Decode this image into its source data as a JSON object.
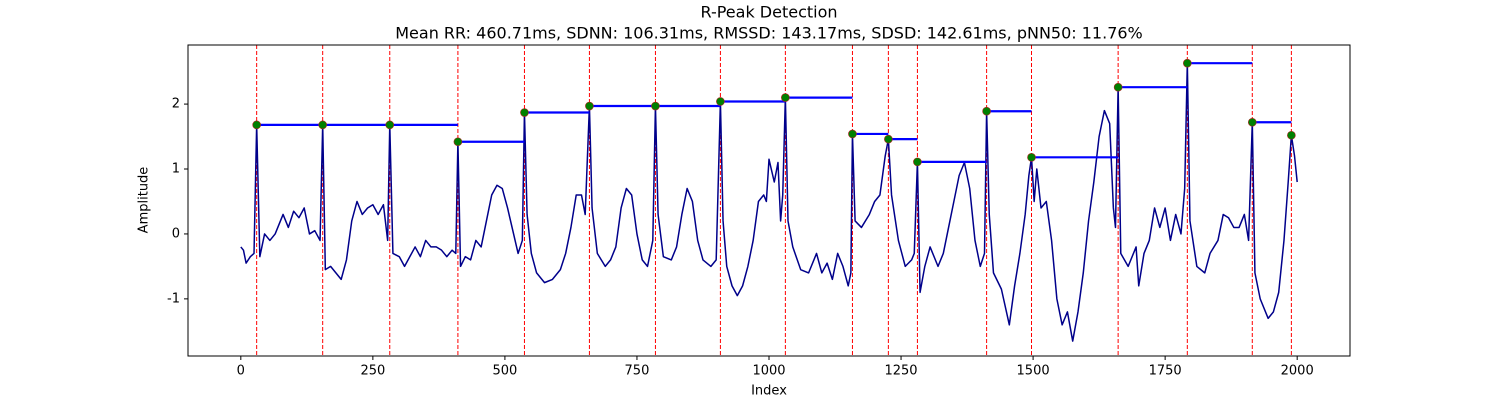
{
  "chart_data": {
    "type": "line",
    "title": "R-Peak Detection",
    "subtitle": "Mean RR: 460.71ms, SDNN: 106.31ms, RMSSD: 143.17ms, SDSD: 142.61ms, pNN50: 11.76%",
    "x_label": "Index",
    "y_label": "Amplitude",
    "xlim": [
      -100,
      2100
    ],
    "ylim": [
      -1.88,
      2.91
    ],
    "xticks": [
      0,
      250,
      500,
      750,
      1000,
      1250,
      1500,
      1750,
      2000
    ],
    "yticks": [
      -1,
      0,
      1,
      2
    ],
    "signal": {
      "color": "#00008b",
      "x": [
        0,
        5,
        10,
        18,
        25,
        30,
        36,
        45,
        55,
        65,
        80,
        90,
        100,
        110,
        120,
        130,
        140,
        150,
        155,
        160,
        170,
        180,
        190,
        200,
        210,
        220,
        230,
        240,
        250,
        260,
        270,
        278,
        282,
        288,
        300,
        310,
        320,
        330,
        340,
        350,
        360,
        370,
        380,
        390,
        400,
        407,
        411,
        416,
        425,
        435,
        445,
        455,
        465,
        475,
        485,
        495,
        505,
        515,
        525,
        533,
        537,
        542,
        550,
        560,
        575,
        590,
        605,
        615,
        625,
        635,
        645,
        652,
        660,
        665,
        675,
        690,
        700,
        710,
        720,
        730,
        740,
        750,
        760,
        770,
        780,
        785,
        790,
        800,
        815,
        825,
        835,
        845,
        855,
        865,
        875,
        890,
        900,
        908,
        913,
        920,
        930,
        940,
        950,
        960,
        970,
        980,
        990,
        995,
        1000,
        1010,
        1017,
        1022,
        1026,
        1031,
        1036,
        1045,
        1060,
        1075,
        1090,
        1100,
        1110,
        1120,
        1130,
        1140,
        1150,
        1155,
        1158,
        1163,
        1175,
        1190,
        1200,
        1210,
        1220,
        1226,
        1232,
        1245,
        1258,
        1270,
        1275,
        1281,
        1286,
        1295,
        1305,
        1320,
        1330,
        1340,
        1350,
        1360,
        1370,
        1380,
        1390,
        1400,
        1408,
        1412,
        1417,
        1425,
        1440,
        1455,
        1465,
        1475,
        1485,
        1492,
        1497,
        1502,
        1507,
        1515,
        1525,
        1535,
        1545,
        1555,
        1565,
        1575,
        1585,
        1595,
        1605,
        1615,
        1625,
        1635,
        1645,
        1652,
        1656,
        1661,
        1666,
        1680,
        1695,
        1700,
        1710,
        1720,
        1730,
        1740,
        1750,
        1760,
        1770,
        1780,
        1787,
        1792,
        1797,
        1810,
        1825,
        1835,
        1850,
        1860,
        1870,
        1880,
        1890,
        1900,
        1908,
        1915,
        1920,
        1930,
        1945,
        1955,
        1965,
        1975,
        1983,
        1989,
        1995,
        2000
      ],
      "values": [
        -0.2,
        -0.25,
        -0.45,
        -0.35,
        -0.3,
        1.68,
        -0.35,
        0.0,
        -0.1,
        0.0,
        0.3,
        0.1,
        0.35,
        0.25,
        0.4,
        0.0,
        0.05,
        -0.1,
        1.68,
        -0.55,
        -0.5,
        -0.6,
        -0.7,
        -0.4,
        0.2,
        0.5,
        0.3,
        0.4,
        0.45,
        0.3,
        0.45,
        -0.1,
        1.68,
        -0.3,
        -0.35,
        -0.5,
        -0.35,
        -0.2,
        -0.35,
        -0.1,
        -0.2,
        -0.2,
        -0.25,
        -0.35,
        -0.25,
        -0.3,
        1.42,
        -0.5,
        -0.35,
        -0.4,
        -0.1,
        -0.2,
        0.2,
        0.6,
        0.75,
        0.7,
        0.4,
        0.05,
        -0.3,
        -0.1,
        1.87,
        0.3,
        -0.3,
        -0.6,
        -0.75,
        -0.7,
        -0.55,
        -0.3,
        0.1,
        0.6,
        0.6,
        0.3,
        1.97,
        0.4,
        -0.3,
        -0.5,
        -0.4,
        -0.2,
        0.4,
        0.7,
        0.6,
        0.0,
        -0.4,
        -0.5,
        -0.1,
        1.97,
        0.3,
        -0.35,
        -0.4,
        -0.2,
        0.3,
        0.7,
        0.5,
        -0.1,
        -0.4,
        -0.5,
        -0.4,
        2.04,
        0.2,
        -0.5,
        -0.8,
        -0.95,
        -0.8,
        -0.5,
        -0.1,
        0.5,
        0.6,
        0.5,
        1.15,
        0.8,
        1.1,
        0.2,
        0.6,
        2.1,
        0.2,
        -0.2,
        -0.55,
        -0.6,
        -0.3,
        -0.6,
        -0.45,
        -0.7,
        -0.3,
        -0.5,
        -0.8,
        -0.6,
        1.54,
        0.2,
        0.1,
        0.3,
        0.5,
        0.6,
        1.2,
        1.46,
        0.6,
        -0.1,
        -0.5,
        -0.4,
        -0.3,
        1.11,
        -0.9,
        -0.5,
        -0.2,
        -0.5,
        -0.3,
        0.1,
        0.5,
        0.9,
        1.1,
        0.7,
        -0.1,
        -0.5,
        -0.3,
        1.89,
        0.3,
        -0.6,
        -0.85,
        -1.4,
        -0.8,
        -0.3,
        0.3,
        0.9,
        1.18,
        0.5,
        1.0,
        0.4,
        0.5,
        -0.1,
        -1.0,
        -1.4,
        -1.2,
        -1.65,
        -1.2,
        -0.6,
        0.2,
        0.8,
        1.5,
        1.9,
        1.7,
        0.4,
        0.1,
        2.26,
        -0.3,
        -0.5,
        -0.2,
        -0.8,
        -0.3,
        -0.1,
        0.4,
        0.1,
        0.4,
        -0.1,
        0.3,
        0.0,
        0.7,
        2.63,
        0.2,
        -0.5,
        -0.6,
        -0.3,
        -0.1,
        0.3,
        0.25,
        0.1,
        0.1,
        0.3,
        -0.1,
        1.72,
        -0.6,
        -1.0,
        -1.3,
        -1.2,
        -0.9,
        -0.1,
        0.8,
        1.52,
        1.2,
        0.8
      ]
    },
    "peaks": {
      "color": "#008000",
      "edge_color": "#b22222",
      "vline_color": "#ff0000",
      "interval_color": "#0000ff",
      "x": [
        30,
        155,
        282,
        411,
        537,
        660,
        785,
        908,
        1031,
        1158,
        1226,
        1281,
        1412,
        1497,
        1661,
        1792,
        1915,
        1989
      ],
      "values": [
        1.68,
        1.68,
        1.68,
        1.42,
        1.87,
        1.97,
        1.97,
        2.04,
        2.1,
        1.54,
        1.46,
        1.11,
        1.89,
        1.18,
        2.26,
        2.63,
        1.72,
        1.52
      ]
    }
  }
}
